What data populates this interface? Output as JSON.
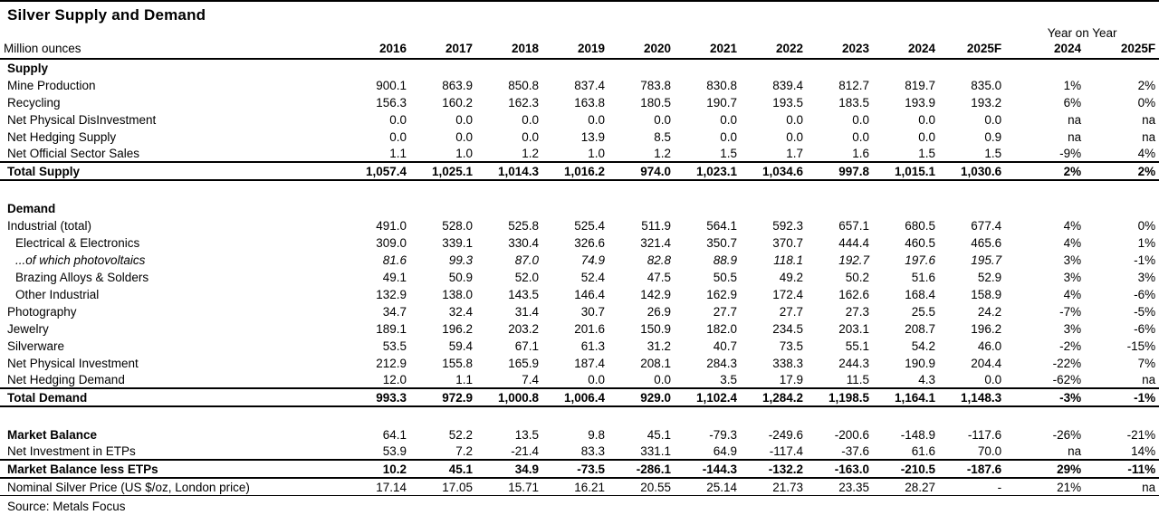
{
  "title": "Silver Supply and Demand",
  "source_note": "Source: Metals Focus",
  "table": {
    "unit_label": "Million ounces",
    "yoy_group_label": "Year on Year",
    "year_columns": [
      "2016",
      "2017",
      "2018",
      "2019",
      "2020",
      "2021",
      "2022",
      "2023",
      "2024",
      "2025F"
    ],
    "yoy_columns": [
      "2024",
      "2025F"
    ],
    "rows": [
      {
        "label": "Supply",
        "style": "section",
        "values": [],
        "yoy": []
      },
      {
        "label": "Mine Production",
        "style": "data",
        "values": [
          "900.1",
          "863.9",
          "850.8",
          "837.4",
          "783.8",
          "830.8",
          "839.4",
          "812.7",
          "819.7",
          "835.0"
        ],
        "yoy": [
          "1%",
          "2%"
        ]
      },
      {
        "label": "Recycling",
        "style": "data",
        "values": [
          "156.3",
          "160.2",
          "162.3",
          "163.8",
          "180.5",
          "190.7",
          "193.5",
          "183.5",
          "193.9",
          "193.2"
        ],
        "yoy": [
          "6%",
          "0%"
        ]
      },
      {
        "label": "Net Physical DisInvestment",
        "style": "data",
        "values": [
          "0.0",
          "0.0",
          "0.0",
          "0.0",
          "0.0",
          "0.0",
          "0.0",
          "0.0",
          "0.0",
          "0.0"
        ],
        "yoy": [
          "na",
          "na"
        ]
      },
      {
        "label": "Net Hedging Supply",
        "style": "data",
        "values": [
          "0.0",
          "0.0",
          "0.0",
          "13.9",
          "8.5",
          "0.0",
          "0.0",
          "0.0",
          "0.0",
          "0.9"
        ],
        "yoy": [
          "na",
          "na"
        ]
      },
      {
        "label": "Net Official Sector Sales",
        "style": "data",
        "values": [
          "1.1",
          "1.0",
          "1.2",
          "1.0",
          "1.2",
          "1.5",
          "1.7",
          "1.6",
          "1.5",
          "1.5"
        ],
        "yoy": [
          "-9%",
          "4%"
        ]
      },
      {
        "label": "Total Supply",
        "style": "total",
        "values": [
          "1,057.4",
          "1,025.1",
          "1,014.3",
          "1,016.2",
          "974.0",
          "1,023.1",
          "1,034.6",
          "997.8",
          "1,015.1",
          "1,030.6"
        ],
        "yoy": [
          "2%",
          "2%"
        ]
      },
      {
        "label": "",
        "style": "blank",
        "values": [],
        "yoy": []
      },
      {
        "label": "Demand",
        "style": "section",
        "values": [],
        "yoy": []
      },
      {
        "label": "Industrial (total)",
        "style": "data",
        "values": [
          "491.0",
          "528.0",
          "525.8",
          "525.4",
          "511.9",
          "564.1",
          "592.3",
          "657.1",
          "680.5",
          "677.4"
        ],
        "yoy": [
          "4%",
          "0%"
        ]
      },
      {
        "label": "Electrical & Electronics",
        "style": "indent",
        "values": [
          "309.0",
          "339.1",
          "330.4",
          "326.6",
          "321.4",
          "350.7",
          "370.7",
          "444.4",
          "460.5",
          "465.6"
        ],
        "yoy": [
          "4%",
          "1%"
        ]
      },
      {
        "label": "...of which photovoltaics",
        "style": "indent_italic",
        "values": [
          "81.6",
          "99.3",
          "87.0",
          "74.9",
          "82.8",
          "88.9",
          "118.1",
          "192.7",
          "197.6",
          "195.7"
        ],
        "yoy": [
          "3%",
          "-1%"
        ]
      },
      {
        "label": "Brazing Alloys & Solders",
        "style": "indent",
        "values": [
          "49.1",
          "50.9",
          "52.0",
          "52.4",
          "47.5",
          "50.5",
          "49.2",
          "50.2",
          "51.6",
          "52.9"
        ],
        "yoy": [
          "3%",
          "3%"
        ]
      },
      {
        "label": "Other Industrial",
        "style": "indent",
        "values": [
          "132.9",
          "138.0",
          "143.5",
          "146.4",
          "142.9",
          "162.9",
          "172.4",
          "162.6",
          "168.4",
          "158.9"
        ],
        "yoy": [
          "4%",
          "-6%"
        ]
      },
      {
        "label": "Photography",
        "style": "data",
        "values": [
          "34.7",
          "32.4",
          "31.4",
          "30.7",
          "26.9",
          "27.7",
          "27.7",
          "27.3",
          "25.5",
          "24.2"
        ],
        "yoy": [
          "-7%",
          "-5%"
        ]
      },
      {
        "label": "Jewelry",
        "style": "data",
        "values": [
          "189.1",
          "196.2",
          "203.2",
          "201.6",
          "150.9",
          "182.0",
          "234.5",
          "203.1",
          "208.7",
          "196.2"
        ],
        "yoy": [
          "3%",
          "-6%"
        ]
      },
      {
        "label": "Silverware",
        "style": "data",
        "values": [
          "53.5",
          "59.4",
          "67.1",
          "61.3",
          "31.2",
          "40.7",
          "73.5",
          "55.1",
          "54.2",
          "46.0"
        ],
        "yoy": [
          "-2%",
          "-15%"
        ]
      },
      {
        "label": "Net Physical Investment",
        "style": "data",
        "values": [
          "212.9",
          "155.8",
          "165.9",
          "187.4",
          "208.1",
          "284.3",
          "338.3",
          "244.3",
          "190.9",
          "204.4"
        ],
        "yoy": [
          "-22%",
          "7%"
        ]
      },
      {
        "label": "Net Hedging Demand",
        "style": "data",
        "values": [
          "12.0",
          "1.1",
          "7.4",
          "0.0",
          "0.0",
          "3.5",
          "17.9",
          "11.5",
          "4.3",
          "0.0"
        ],
        "yoy": [
          "-62%",
          "na"
        ]
      },
      {
        "label": "Total Demand",
        "style": "total",
        "values": [
          "993.3",
          "972.9",
          "1,000.8",
          "1,006.4",
          "929.0",
          "1,102.4",
          "1,284.2",
          "1,198.5",
          "1,164.1",
          "1,148.3"
        ],
        "yoy": [
          "-3%",
          "-1%"
        ]
      },
      {
        "label": "",
        "style": "blank",
        "values": [],
        "yoy": []
      },
      {
        "label": "Market Balance",
        "style": "bold_label",
        "values": [
          "64.1",
          "52.2",
          "13.5",
          "9.8",
          "45.1",
          "-79.3",
          "-249.6",
          "-200.6",
          "-148.9",
          "-117.6"
        ],
        "yoy": [
          "-26%",
          "-21%"
        ]
      },
      {
        "label": "Net Investment in ETPs",
        "style": "data",
        "values": [
          "53.9",
          "7.2",
          "-21.4",
          "83.3",
          "331.1",
          "64.9",
          "-117.4",
          "-37.6",
          "61.6",
          "70.0"
        ],
        "yoy": [
          "na",
          "14%"
        ]
      },
      {
        "label": "Market Balance less ETPs",
        "style": "total",
        "values": [
          "10.2",
          "45.1",
          "34.9",
          "-73.5",
          "-286.1",
          "-144.3",
          "-132.2",
          "-163.0",
          "-210.5",
          "-187.6"
        ],
        "yoy": [
          "29%",
          "-11%"
        ]
      },
      {
        "label": "Nominal Silver Price (US $/oz, London price)",
        "style": "price",
        "values": [
          "17.14",
          "17.05",
          "15.71",
          "16.21",
          "20.55",
          "25.14",
          "21.73",
          "23.35",
          "28.27",
          "-"
        ],
        "yoy": [
          "21%",
          "na"
        ]
      }
    ]
  }
}
